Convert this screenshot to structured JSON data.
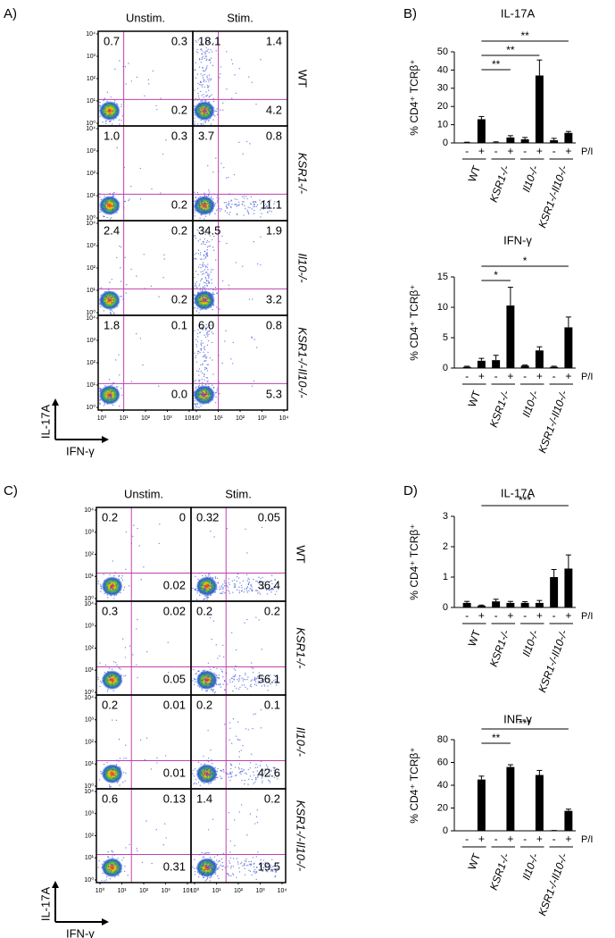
{
  "panels": [
    {
      "letter": "A)",
      "type": "flow",
      "columns": [
        "Unstim.",
        "Stim."
      ],
      "rows": [
        {
          "label": "WT",
          "cells": [
            [
              "0.7",
              "0.3",
              "0.2"
            ],
            [
              "18.1",
              "1.4",
              "4.2"
            ]
          ]
        },
        {
          "label": "KSR1-/-",
          "cells": [
            [
              "1.0",
              "0.3",
              "0.2"
            ],
            [
              "3.7",
              "0.8",
              "11.1"
            ]
          ]
        },
        {
          "label": "Il10-/-",
          "cells": [
            [
              "2.4",
              "0.2",
              "0.2"
            ],
            [
              "34.5",
              "1.9",
              "3.2"
            ]
          ]
        },
        {
          "label": "KSR1-/-Il10-/-",
          "cells": [
            [
              "1.8",
              "0.1",
              "0.0"
            ],
            [
              "6.0",
              "0.8",
              "5.3"
            ]
          ]
        }
      ],
      "ticks": [
        {
          "value": 1,
          "label": "10⁰"
        },
        {
          "value": 10,
          "label": "10¹"
        },
        {
          "value": 100,
          "label": "10²"
        },
        {
          "value": 1000,
          "label": "10³"
        },
        {
          "value": 10000,
          "label": "10⁴"
        }
      ],
      "y_label": "IL-17A",
      "x_label": "IFN-γ"
    },
    {
      "letter": "B)",
      "type": "bars",
      "charts": [
        {
          "type": "bar",
          "title": "IL-17A",
          "y_label": "% CD4⁺ TCRβ⁺",
          "groups": [
            "WT",
            "KSR1-/-",
            "Il10-/-",
            "KSR1-/-Il10-/-"
          ],
          "conditions": [
            "-",
            "+"
          ],
          "condition_label": "P/I",
          "values": [
            0.3,
            13,
            0.3,
            3,
            2,
            37,
            1.5,
            5.5
          ],
          "errors": [
            0.1,
            1.5,
            0.3,
            1,
            1,
            8.5,
            1,
            0.8
          ],
          "ylim": [
            0,
            50
          ],
          "yticks": [
            0,
            10,
            20,
            30,
            40,
            50
          ],
          "color": "#000000",
          "annotations": [
            {
              "text": "**",
              "from": 1,
              "to": 3
            },
            {
              "text": "**",
              "from": 1,
              "to": 5
            },
            {
              "text": "**",
              "from": 1,
              "to": 7
            }
          ]
        },
        {
          "type": "bar",
          "title": "IFN-γ",
          "y_label": "% CD4⁺ TCRβ⁺",
          "groups": [
            "WT",
            "KSR1-/-",
            "Il10-/-",
            "KSR1-/-Il10-/-"
          ],
          "conditions": [
            "-",
            "+"
          ],
          "condition_label": "P/I",
          "values": [
            0.2,
            1.2,
            1.3,
            10.3,
            0.4,
            2.9,
            0.2,
            6.7
          ],
          "errors": [
            0.1,
            0.4,
            0.8,
            3,
            0.1,
            0.6,
            0.1,
            1.7
          ],
          "ylim": [
            0,
            15
          ],
          "yticks": [
            0,
            5,
            10,
            15
          ],
          "color": "#000000",
          "annotations": [
            {
              "text": "*",
              "from": 1,
              "to": 3
            },
            {
              "text": "*",
              "from": 1,
              "to": 7
            }
          ]
        }
      ]
    },
    {
      "letter": "C)",
      "type": "flow",
      "columns": [
        "Unstim.",
        "Stim."
      ],
      "rows": [
        {
          "label": "WT",
          "cells": [
            [
              "0.2",
              "0",
              "0.02"
            ],
            [
              "0.32",
              "0.05",
              "36.4"
            ]
          ]
        },
        {
          "label": "KSR1-/-",
          "cells": [
            [
              "0.3",
              "0.02",
              "0.05"
            ],
            [
              "0.2",
              "0.2",
              "56.1"
            ]
          ]
        },
        {
          "label": "Il10-/-",
          "cells": [
            [
              "0.2",
              "0.01",
              "0.01"
            ],
            [
              "0.2",
              "0.1",
              "42.6"
            ]
          ]
        },
        {
          "label": "KSR1-/-Il10-/-",
          "cells": [
            [
              "0.6",
              "0.13",
              "0.31"
            ],
            [
              "1.4",
              "0.2",
              "19.5"
            ]
          ]
        }
      ],
      "ticks": [
        {
          "value": 1,
          "label": "10⁰"
        },
        {
          "value": 10,
          "label": "10¹"
        },
        {
          "value": 100,
          "label": "10²"
        },
        {
          "value": 1000,
          "label": "10³"
        },
        {
          "value": 10000,
          "label": "10⁴"
        }
      ],
      "y_label": "IL-17A",
      "x_label": "IFN-γ"
    },
    {
      "letter": "D)",
      "type": "bars",
      "charts": [
        {
          "type": "bar",
          "title": "IL-17A",
          "y_label": "% CD4⁺ TCRβ⁺",
          "groups": [
            "WT",
            "KSR1-/-",
            "Il10-/-",
            "KSR1-/-Il10-/-"
          ],
          "conditions": [
            "-",
            "+"
          ],
          "condition_label": "P/I",
          "values": [
            0.15,
            0.06,
            0.2,
            0.15,
            0.15,
            0.15,
            1.0,
            1.28
          ],
          "errors": [
            0.05,
            0.02,
            0.07,
            0.05,
            0.04,
            0.08,
            0.25,
            0.45
          ],
          "ylim": [
            0,
            3
          ],
          "yticks": [
            0,
            1,
            2,
            3
          ],
          "color": "#000000",
          "annotations": [
            {
              "text": "***",
              "from": 1,
              "to": 7
            }
          ]
        },
        {
          "type": "bar",
          "title": "INF-γ",
          "y_label": "% CD4⁺ TCRβ⁺",
          "groups": [
            "WT",
            "KSR1-/-",
            "Il10-/-",
            "KSR1-/-Il10-/-"
          ],
          "conditions": [
            "-",
            "+"
          ],
          "condition_label": "P/I",
          "values": [
            0,
            45,
            0,
            56,
            0,
            49,
            0.3,
            17.5
          ],
          "errors": [
            0,
            3,
            0,
            2,
            0,
            4,
            0,
            1.5
          ],
          "ylim": [
            0,
            80
          ],
          "yticks": [
            0,
            20,
            40,
            60,
            80
          ],
          "color": "#000000",
          "annotations": [
            {
              "text": "**",
              "from": 1,
              "to": 3
            },
            {
              "text": "***",
              "from": 1,
              "to": 7
            }
          ]
        }
      ]
    }
  ]
}
